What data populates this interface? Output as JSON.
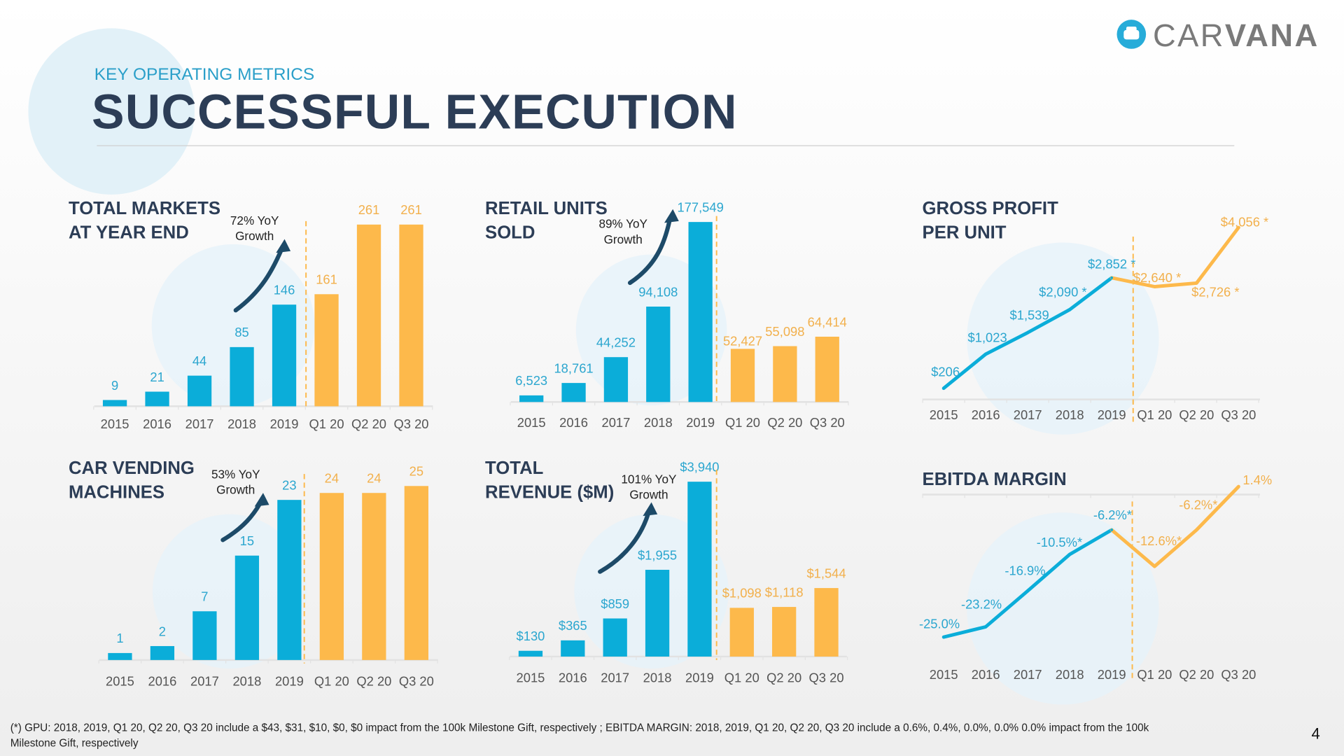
{
  "header": {
    "section_label": "KEY OPERATING METRICS",
    "title": "SUCCESSFUL EXECUTION"
  },
  "logo": {
    "text_light": "CAR",
    "text_bold": "VANA",
    "icon": "car-icon"
  },
  "footnote": {
    "line1": "(*) GPU:  2018, 2019, Q1 20, Q2 20, Q3 20 include a $43, $31, $10, $0, $0 impact from the 100k Milestone Gift, respectively ;  EBITDA MARGIN: 2018, 2019, Q1 20, Q2 20, Q3 20 include a 0.6%, 0.4%, 0.0%, 0.0% 0.0% impact from the 100k",
    "line2": "Milestone Gift, respectively"
  },
  "page_number": "4",
  "colors": {
    "annual": "#0badd9",
    "quarterly": "#fdb94b",
    "annual_label": "#2ba6cf",
    "quarterly_label": "#f2b04c",
    "title": "#2c3d56",
    "arrow": "#1d4a68",
    "circle": "#e6f3fa"
  },
  "chart_data": [
    {
      "type": "bar",
      "title_lines": [
        "TOTAL MARKETS",
        "AT YEAR END"
      ],
      "categories": [
        "2015",
        "2016",
        "2017",
        "2018",
        "2019",
        "Q1 20",
        "Q2 20",
        "Q3 20"
      ],
      "values": [
        9,
        21,
        44,
        85,
        146,
        161,
        261,
        261
      ],
      "labels": [
        "9",
        "21",
        "44",
        "85",
        "146",
        "161",
        "261",
        "261"
      ],
      "yoy": {
        "line1": "72% YoY",
        "line2": "Growth"
      }
    },
    {
      "type": "bar",
      "title_lines": [
        "RETAIL UNITS",
        "SOLD"
      ],
      "categories": [
        "2015",
        "2016",
        "2017",
        "2018",
        "2019",
        "Q1 20",
        "Q2 20",
        "Q3 20"
      ],
      "values": [
        6523,
        18761,
        44252,
        94108,
        177549,
        52427,
        55098,
        64414
      ],
      "labels": [
        "6,523",
        "18,761",
        "44,252",
        "94,108",
        "177,549",
        "52,427",
        "55,098",
        "64,414"
      ],
      "yoy": {
        "line1": "89% YoY",
        "line2": "Growth"
      }
    },
    {
      "type": "line",
      "title_lines": [
        "GROSS PROFIT",
        "PER UNIT"
      ],
      "categories": [
        "2015",
        "2016",
        "2017",
        "2018",
        "2019",
        "Q1 20",
        "Q2 20",
        "Q3 20"
      ],
      "values": [
        206,
        1023,
        1539,
        2090,
        2852,
        2640,
        2726,
        4056
      ],
      "labels": [
        "$206",
        "$1,023",
        "$1,539",
        "$2,090 *",
        "$2,852 *",
        "$2,640 *",
        "$2,726 *",
        "$4,056 *"
      ]
    },
    {
      "type": "bar",
      "title_lines": [
        "CAR VENDING",
        "MACHINES"
      ],
      "categories": [
        "2015",
        "2016",
        "2017",
        "2018",
        "2019",
        "Q1 20",
        "Q2 20",
        "Q3 20"
      ],
      "values": [
        1,
        2,
        7,
        15,
        23,
        24,
        24,
        25
      ],
      "labels": [
        "1",
        "2",
        "7",
        "15",
        "23",
        "24",
        "24",
        "25"
      ],
      "yoy": {
        "line1": "53% YoY",
        "line2": "Growth"
      }
    },
    {
      "type": "bar",
      "title_lines": [
        "TOTAL",
        "REVENUE ($M)"
      ],
      "categories": [
        "2015",
        "2016",
        "2017",
        "2018",
        "2019",
        "Q1 20",
        "Q2 20",
        "Q3 20"
      ],
      "values": [
        130,
        365,
        859,
        1955,
        3940,
        1098,
        1118,
        1544
      ],
      "labels": [
        "$130",
        "$365",
        "$859",
        "$1,955",
        "$3,940",
        "$1,098",
        "$1,118",
        "$1,544"
      ],
      "yoy": {
        "line1": "101% YoY",
        "line2": "Growth"
      }
    },
    {
      "type": "line",
      "title_lines": [
        "EBITDA MARGIN"
      ],
      "categories": [
        "2015",
        "2016",
        "2017",
        "2018",
        "2019",
        "Q1 20",
        "Q2 20",
        "Q3 20"
      ],
      "values": [
        -25.0,
        -23.2,
        -16.9,
        -10.5,
        -6.2,
        -12.6,
        -6.2,
        1.4
      ],
      "labels": [
        "-25.0%",
        "-23.2%",
        "-16.9%",
        "-10.5%*",
        "-6.2%*",
        "-12.6%*",
        "-6.2%*",
        "1.4%"
      ]
    }
  ]
}
